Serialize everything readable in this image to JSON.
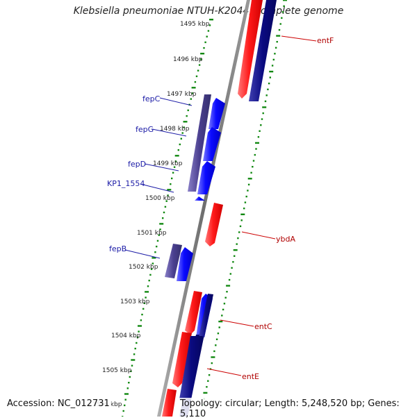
{
  "header": {
    "title": "Klebsiella pneumoniae NTUH-K2044, complete genome"
  },
  "footer": {
    "accession": "Accession: NC_012731",
    "summary": "Topology: circular; Length: 5,248,520 bp; Genes: 5,110"
  },
  "scale": {
    "ticks": [
      "1495 kbp",
      "1496 kbp",
      "1497 kbp",
      "1498 kbp",
      "1499 kbp",
      "1500 kbp",
      "1501 kbp",
      "1502 kbp",
      "1503 kbp",
      "1504 kbp",
      "1505 kbp",
      "1506 kbp"
    ]
  },
  "genes_left": [
    "fepC",
    "fepG",
    "fepD",
    "KP1_1554",
    "fepB"
  ],
  "genes_right": [
    "entF",
    "ybdA",
    "entC",
    "entE"
  ],
  "colors": {
    "forward_cds": "#ff1a1a",
    "reverse_cds": "#0a0aff",
    "forward_dark": "#0a0a80",
    "reverse_dark": "#4a3f8f",
    "backbone": "#888888",
    "scale_ticks": "#118811",
    "left_labels": "#1a1aa6",
    "right_labels": "#b00000"
  }
}
